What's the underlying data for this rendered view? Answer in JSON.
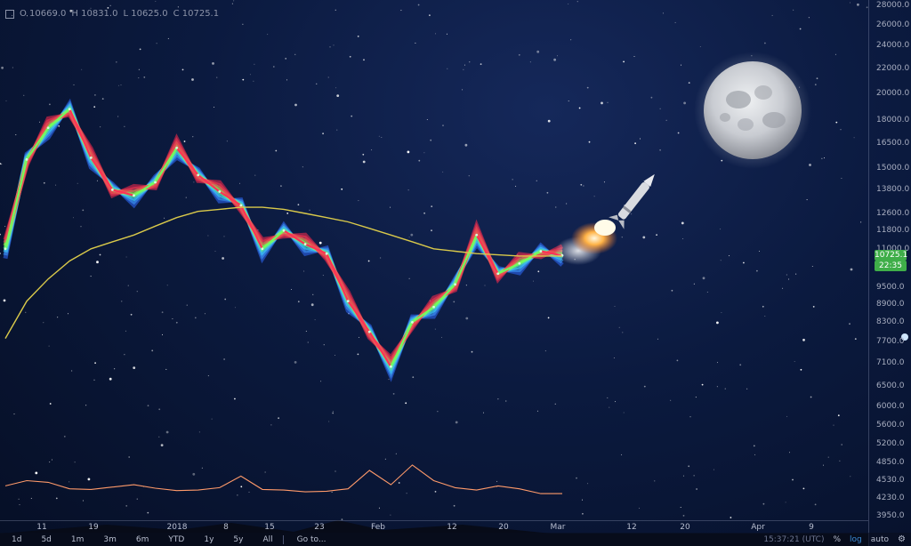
{
  "ohlc": {
    "open": "O 10669.0",
    "high": "H 10831.0",
    "low": "L 10625.0",
    "close": "C 10725.1"
  },
  "price_axis": {
    "ticks": [
      "28000.0",
      "26000.0",
      "24000.0",
      "22000.0",
      "20000.0",
      "18000.0",
      "16500.0",
      "15000.0",
      "13800.0",
      "12600.0",
      "11800.0",
      "11000.0",
      "9500.0",
      "8900.0",
      "8300.0",
      "7700.0",
      "7100.0",
      "6500.0",
      "6000.0",
      "5600.0",
      "5200.0",
      "4850.0",
      "4530.0",
      "4230.0",
      "3950.0"
    ],
    "last_price": "10725.1",
    "countdown": "22:35",
    "last_price_color": "#3fae49",
    "countdown_color": "#3fae49"
  },
  "time_axis": {
    "ticks": [
      "11",
      "19",
      "2018",
      "8",
      "15",
      "23",
      "Feb",
      "12",
      "20",
      "Mar",
      "12",
      "20",
      "Apr",
      "9"
    ]
  },
  "toolbar": {
    "ranges": [
      "1d",
      "5d",
      "1m",
      "3m",
      "6m",
      "YTD",
      "1y",
      "5y",
      "All"
    ],
    "goto": "Go to...",
    "clock": "15:37:21 (UTC)",
    "pct": "%",
    "log": "log",
    "auto": "auto",
    "settings_icon": "gear-icon"
  },
  "decorations": {
    "moon": "moon-image",
    "rocket": "rocket-image"
  },
  "chart_data": {
    "type": "line",
    "scale": "log",
    "ylim": [
      3950,
      28000
    ],
    "x": [
      "Dec 4",
      "Dec 11",
      "Dec 17",
      "Dec 19",
      "Dec 22",
      "Dec 25",
      "Dec 28",
      "Jan 1",
      "Jan 4",
      "Jan 8",
      "Jan 12",
      "Jan 15",
      "Jan 17",
      "Jan 20",
      "Jan 23",
      "Jan 27",
      "Feb 1",
      "Feb 3",
      "Feb 6",
      "Feb 9",
      "Feb 12",
      "Feb 15",
      "Feb 20",
      "Feb 24",
      "Feb 27",
      "Mar 1",
      "Mar 3"
    ],
    "series": [
      {
        "values": [
          11000,
          15500,
          17500,
          18800,
          15600,
          13800,
          13500,
          14200,
          16200,
          14600,
          13700,
          13000,
          11000,
          11800,
          11200,
          10800,
          9000,
          8000,
          7000,
          8300,
          8800,
          9600,
          11600,
          10000,
          10400,
          10900,
          10725
        ]
      },
      {
        "values": [
          7800,
          9000,
          9800,
          10500,
          11000,
          11300,
          11600,
          12000,
          12400,
          12700,
          12800,
          12900,
          12900,
          12800,
          12600,
          12400,
          12200,
          11900,
          11600,
          11300,
          11000,
          10900,
          10800,
          10750,
          10700,
          10700,
          10700
        ]
      }
    ],
    "volume_overlay": [
      4430,
      4520,
      4490,
      4380,
      4370,
      4410,
      4450,
      4390,
      4350,
      4360,
      4400,
      4600,
      4370,
      4360,
      4330,
      4340,
      4380,
      4700,
      4450,
      4800,
      4520,
      4400,
      4360,
      4430,
      4380,
      4300,
      4300
    ],
    "grid": false,
    "legend": "none"
  }
}
